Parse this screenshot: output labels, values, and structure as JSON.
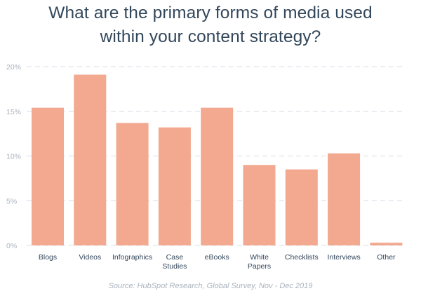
{
  "title_lines": [
    "What are the primary forms of media used",
    "within your content strategy?"
  ],
  "source": "Source: HubSpot Research, Global Survey, Nov - Dec 2019",
  "colors": {
    "bar": "#f2a98f",
    "grid": "#dfe3eb",
    "title": "#33475b",
    "axis_text": "#aab3bd",
    "category_text": "#33475b",
    "source_text": "#a9b3bd"
  },
  "chart_data": {
    "type": "bar",
    "categories": [
      [
        "Blogs"
      ],
      [
        "Videos"
      ],
      [
        "Infographics"
      ],
      [
        "Case",
        "Studies"
      ],
      [
        "eBooks"
      ],
      [
        "White",
        "Papers"
      ],
      [
        "Checklists"
      ],
      [
        "Interviews"
      ],
      [
        "Other"
      ]
    ],
    "values": [
      15.4,
      19.1,
      13.7,
      13.2,
      15.4,
      9.0,
      8.5,
      10.3,
      0.3
    ],
    "ylim": [
      0,
      20
    ],
    "yticks": [
      0,
      5,
      10,
      15,
      20
    ],
    "ytick_labels": [
      "0%",
      "5%",
      "10%",
      "15%",
      "20%"
    ],
    "grid": true,
    "grid_style": "dashed"
  }
}
